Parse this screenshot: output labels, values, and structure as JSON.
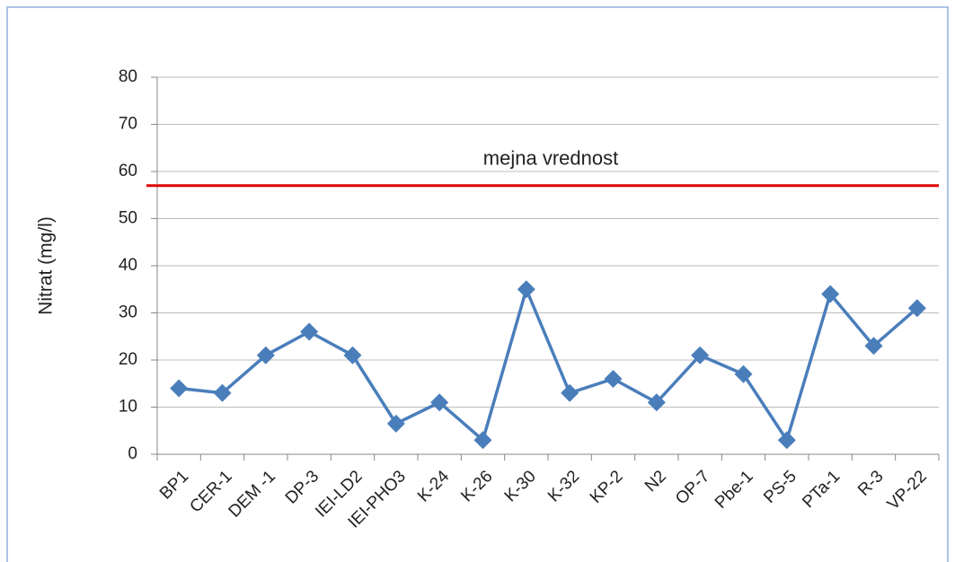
{
  "chart_data": {
    "type": "line",
    "y_label": "Nitrat (mg/l)",
    "categories": [
      "BP1",
      "CER-1",
      "DEM -1",
      "DP-3",
      "IEI-LD2",
      "IEI-PHO3",
      "K-24",
      "K-26",
      "K-30",
      "K-32",
      "KP-2",
      "N2",
      "OP-7",
      "Pbe-1",
      "PS-5",
      "PTa-1",
      "R-3",
      "VP-22"
    ],
    "series": [
      {
        "name": "Nitrat",
        "color": "#4a7ebb",
        "values": [
          14,
          13,
          21,
          26,
          21,
          6.5,
          11,
          3,
          35,
          13,
          16,
          11,
          21,
          17,
          3,
          34,
          23,
          31
        ]
      }
    ],
    "reference_line": {
      "value": 57,
      "label": "mejna vrednost",
      "color": "#e00000"
    },
    "ylim": [
      0,
      80
    ],
    "yticks": [
      0,
      10,
      20,
      30,
      40,
      50,
      60,
      70,
      80
    ],
    "grid": true
  }
}
